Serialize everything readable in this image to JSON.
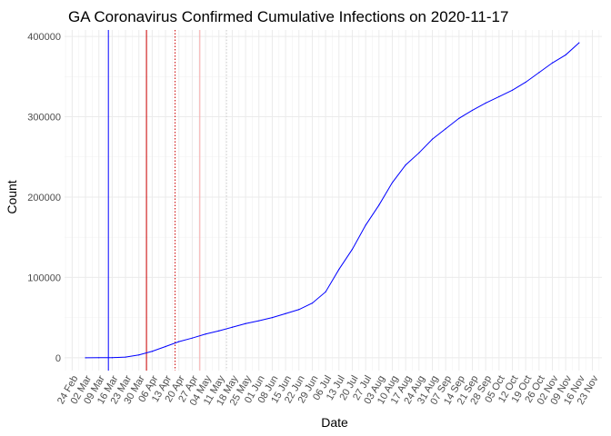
{
  "chart_data": {
    "type": "line",
    "title": "GA Coronavirus Confirmed Cumulative Infections on 2020-11-17",
    "xlabel": "Date",
    "ylabel": "Count",
    "x_type": "date",
    "xlim": [
      "2020-02-20",
      "2020-11-28"
    ],
    "ylim": [
      -16000,
      408000
    ],
    "yticks": [
      0,
      100000,
      200000,
      300000,
      400000
    ],
    "ytick_labels": [
      "0",
      "100000",
      "200000",
      "300000",
      "400000"
    ],
    "xticks": [
      "2020-02-24",
      "2020-03-02",
      "2020-03-09",
      "2020-03-16",
      "2020-03-23",
      "2020-03-30",
      "2020-04-06",
      "2020-04-13",
      "2020-04-20",
      "2020-04-27",
      "2020-05-04",
      "2020-05-11",
      "2020-05-18",
      "2020-05-25",
      "2020-06-01",
      "2020-06-08",
      "2020-06-15",
      "2020-06-22",
      "2020-06-29",
      "2020-07-06",
      "2020-07-13",
      "2020-07-20",
      "2020-07-27",
      "2020-08-03",
      "2020-08-10",
      "2020-08-17",
      "2020-08-24",
      "2020-08-31",
      "2020-09-07",
      "2020-09-14",
      "2020-09-21",
      "2020-09-28",
      "2020-10-05",
      "2020-10-12",
      "2020-10-19",
      "2020-10-26",
      "2020-11-02",
      "2020-11-09",
      "2020-11-16",
      "2020-11-23"
    ],
    "xtick_labels": [
      "24 Feb",
      "02 Mar",
      "09 Mar",
      "16 Mar",
      "23 Mar",
      "30 Mar",
      "06 Apr",
      "13 Apr",
      "20 Apr",
      "27 Apr",
      "04 May",
      "11 May",
      "18 May",
      "25 May",
      "01 Jun",
      "08 Jun",
      "15 Jun",
      "22 Jun",
      "29 Jun",
      "06 Jul",
      "13 Jul",
      "20 Jul",
      "27 Jul",
      "03 Aug",
      "10 Aug",
      "17 Aug",
      "24 Aug",
      "31 Aug",
      "07 Sep",
      "14 Sep",
      "21 Sep",
      "28 Sep",
      "05 Oct",
      "12 Oct",
      "19 Oct",
      "26 Oct",
      "02 Nov",
      "09 Nov",
      "16 Nov",
      "23 Nov"
    ],
    "grid": true,
    "legend": "none",
    "series": [
      {
        "color": "#0000ff",
        "x": [
          "2020-03-02",
          "2020-03-09",
          "2020-03-16",
          "2020-03-23",
          "2020-03-30",
          "2020-04-06",
          "2020-04-13",
          "2020-04-20",
          "2020-04-27",
          "2020-05-04",
          "2020-05-11",
          "2020-05-18",
          "2020-05-25",
          "2020-06-01",
          "2020-06-08",
          "2020-06-15",
          "2020-06-22",
          "2020-06-29",
          "2020-07-06",
          "2020-07-13",
          "2020-07-20",
          "2020-07-27",
          "2020-08-03",
          "2020-08-10",
          "2020-08-17",
          "2020-08-24",
          "2020-08-31",
          "2020-09-07",
          "2020-09-14",
          "2020-09-21",
          "2020-09-28",
          "2020-10-05",
          "2020-10-12",
          "2020-10-19",
          "2020-10-26",
          "2020-11-02",
          "2020-11-09",
          "2020-11-16"
        ],
        "y": [
          2,
          50,
          150,
          800,
          3500,
          8000,
          14000,
          20000,
          24500,
          29500,
          33500,
          38000,
          42500,
          46000,
          50000,
          55000,
          60000,
          68000,
          82000,
          110000,
          135000,
          165000,
          190000,
          218000,
          240000,
          255000,
          272000,
          285000,
          298000,
          308000,
          317000,
          325000,
          333000,
          343000,
          355000,
          367000,
          377000,
          392000
        ]
      }
    ],
    "reference_lines": [
      {
        "x": "2020-03-14",
        "color": "#0000ff",
        "style": "solid"
      },
      {
        "x": "2020-04-03",
        "color": "#cc0000",
        "style": "solid"
      },
      {
        "x": "2020-04-18",
        "color": "#cc0000",
        "style": "dotted"
      },
      {
        "x": "2020-05-01",
        "color": "#f4a6a6",
        "style": "solid"
      },
      {
        "x": "2020-05-15",
        "color": "#cccccc",
        "style": "dotted"
      }
    ]
  }
}
